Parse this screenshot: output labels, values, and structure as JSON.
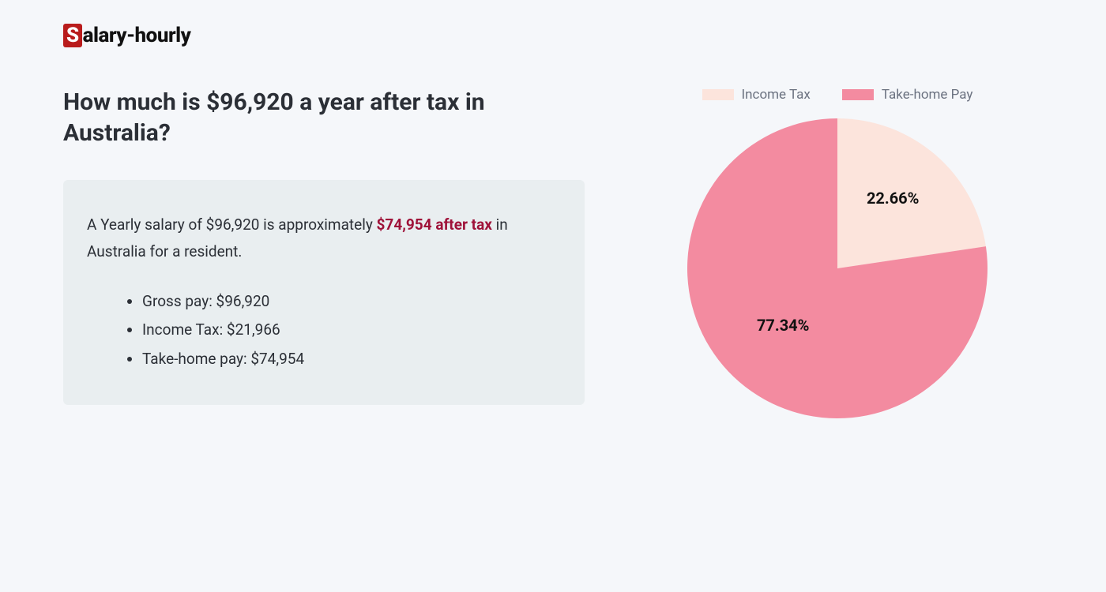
{
  "logo": {
    "badge": "S",
    "rest": "alary-hourly"
  },
  "heading": "How much is $96,920 a year after tax in Australia?",
  "summary": {
    "pre": "A Yearly salary of $96,920 is approximately ",
    "highlight": "$74,954 after tax",
    "post": " in Australia for a resident."
  },
  "list": {
    "gross": {
      "label": "Gross pay: ",
      "value": "$96,920"
    },
    "incomeTax": {
      "label": "Income Tax: ",
      "value": "$21,966"
    },
    "takeHome": {
      "label": "Take-home pay: ",
      "value": "$74,954"
    }
  },
  "chart": {
    "type": "pie",
    "legend": {
      "incomeTax": {
        "label": "Income Tax",
        "color": "#fce4dc"
      },
      "takeHomePay": {
        "label": "Take-home Pay",
        "color": "#f38ba0"
      }
    },
    "slices": {
      "incomeTax": {
        "percent": 22.66,
        "label": "22.66%",
        "color": "#fce4dc"
      },
      "takeHomePay": {
        "percent": 77.34,
        "label": "77.34%",
        "color": "#f38ba0"
      }
    },
    "size": 380,
    "label_fontsize": 20,
    "label_color": "#111111",
    "legend_fontsize": 17,
    "legend_color": "#6b7280",
    "background_color": "#f5f7fa"
  }
}
